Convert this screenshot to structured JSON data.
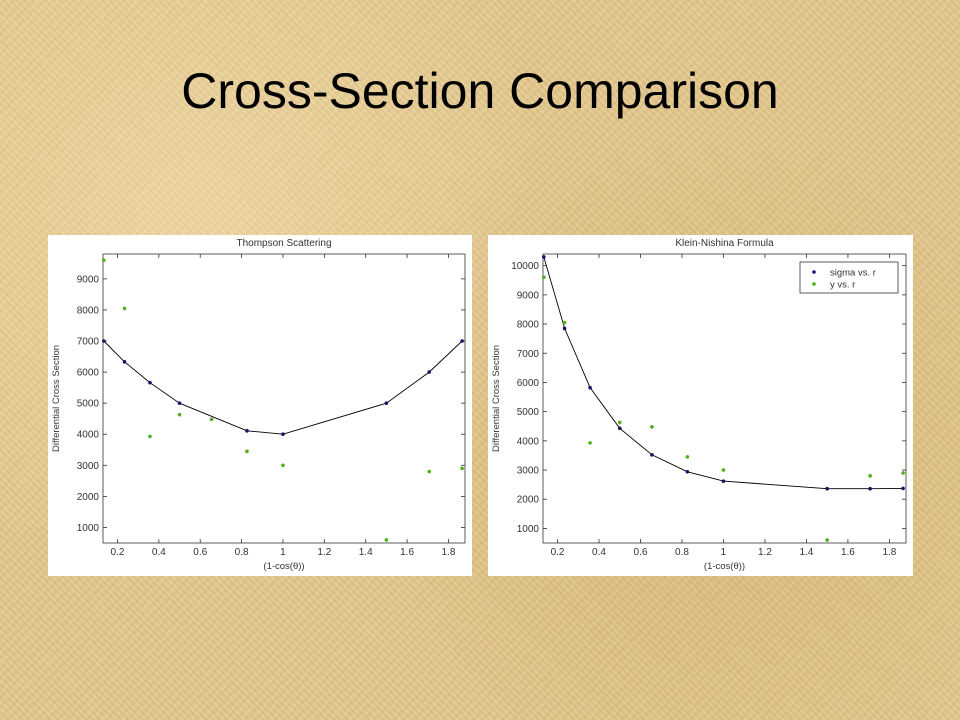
{
  "slide": {
    "title": "Cross-Section Comparison"
  },
  "chart_data": [
    {
      "type": "scatter",
      "title": "Thompson Scattering",
      "xlabel": "(1-cos(θ))",
      "ylabel": "Differential Cross Section",
      "xlim": [
        0.13,
        1.88
      ],
      "ylim": [
        500,
        9800
      ],
      "xticks": [
        "0.2",
        "0.4",
        "0.6",
        "0.8",
        "1",
        "1.2",
        "1.4",
        "1.6",
        "1.8"
      ],
      "yticks": [
        "1000",
        "2000",
        "3000",
        "4000",
        "5000",
        "6000",
        "7000",
        "8000",
        "9000"
      ],
      "series": [
        {
          "kind": "line-with-markers",
          "color": "#2a0a66",
          "points": [
            [
              0.134,
              7000
            ],
            [
              0.234,
              6330
            ],
            [
              0.357,
              5660
            ],
            [
              0.5,
              5000
            ],
            [
              0.826,
              4110
            ],
            [
              1.0,
              4000
            ],
            [
              1.5,
              5000
            ],
            [
              1.707,
              6000
            ],
            [
              1.866,
              7000
            ]
          ]
        },
        {
          "kind": "markers",
          "color": "#4caf1a",
          "points": [
            [
              0.134,
              9600
            ],
            [
              0.234,
              8050
            ],
            [
              0.357,
              3930
            ],
            [
              0.5,
              4630
            ],
            [
              0.655,
              4480
            ],
            [
              0.826,
              3450
            ],
            [
              1.0,
              3000
            ],
            [
              1.5,
              600
            ],
            [
              1.707,
              2800
            ],
            [
              1.866,
              2900
            ]
          ]
        }
      ]
    },
    {
      "type": "scatter",
      "title": "Klein-Nishina Formula",
      "xlabel": "(1-cos(θ))",
      "ylabel": "Differential Cross Section",
      "xlim": [
        0.13,
        1.88
      ],
      "ylim": [
        500,
        10400
      ],
      "xticks": [
        "0.2",
        "0.4",
        "0.6",
        "0.8",
        "1",
        "1.2",
        "1.4",
        "1.6",
        "1.8"
      ],
      "yticks": [
        "1000",
        "2000",
        "3000",
        "4000",
        "5000",
        "6000",
        "7000",
        "8000",
        "9000",
        "10000"
      ],
      "legend": {
        "position": "top-right",
        "entries": [
          "sigma vs. r",
          "y vs. r"
        ]
      },
      "series": [
        {
          "name": "sigma vs. r",
          "kind": "line-with-markers",
          "color": "#2a0a66",
          "points": [
            [
              0.134,
              10300
            ],
            [
              0.234,
              7850
            ],
            [
              0.357,
              5820
            ],
            [
              0.5,
              4430
            ],
            [
              0.655,
              3520
            ],
            [
              0.826,
              2940
            ],
            [
              1.0,
              2620
            ],
            [
              1.5,
              2360
            ],
            [
              1.707,
              2360
            ],
            [
              1.866,
              2370
            ]
          ]
        },
        {
          "name": "y vs. r",
          "kind": "markers",
          "color": "#4caf1a",
          "points": [
            [
              0.134,
              9600
            ],
            [
              0.234,
              8050
            ],
            [
              0.357,
              3930
            ],
            [
              0.5,
              4630
            ],
            [
              0.655,
              4480
            ],
            [
              0.826,
              3450
            ],
            [
              1.0,
              3000
            ],
            [
              1.5,
              600
            ],
            [
              1.707,
              2800
            ],
            [
              1.866,
              2900
            ]
          ]
        }
      ]
    }
  ]
}
